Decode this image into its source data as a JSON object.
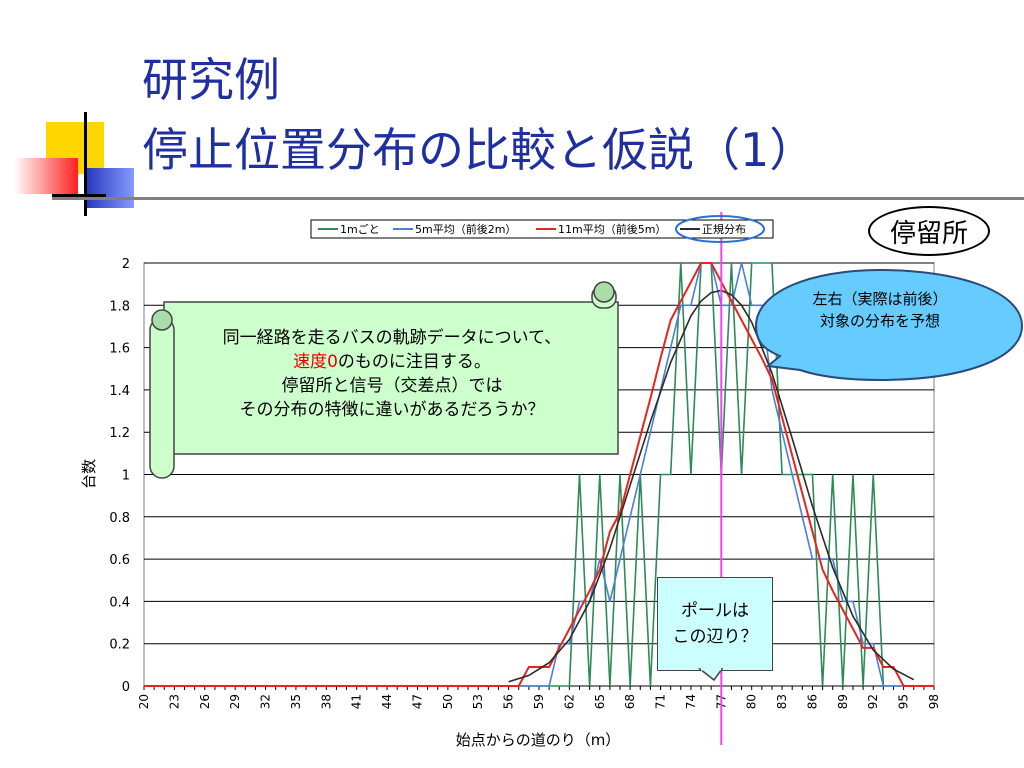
{
  "slide": {
    "title_line1": "研究例",
    "title_line2": "停止位置分布の比較と仮説（1）",
    "badge": "停留所",
    "scroll_note": {
      "line1": "同一経路を走るバスの軌跡データについて、",
      "line2_red": "速度0",
      "line2_rest": "のものに注目する。",
      "line3": "停留所と信号（交差点）では",
      "line4": "その分布の特徴に違いがあるだろうか？"
    },
    "bubble": {
      "line1": "左右（実際は前後）",
      "line2": "対象の分布を予想"
    },
    "pole_note": {
      "line1": "ポールは",
      "line2": "この辺り？"
    },
    "colors": {
      "title": "#1f2ea0",
      "series_1m": "#2e8b57",
      "series_5m": "#4a7fd4",
      "series_11m": "#e8241c",
      "series_normal": "#2b2b2b",
      "marker": "#ee44ee",
      "bubble_fill": "#66ccff"
    }
  },
  "chart_data": {
    "type": "line",
    "xlabel": "始点からの道のり（m）",
    "ylabel": "台数",
    "ylim": [
      0,
      2
    ],
    "yticks": [
      "0",
      "0.2",
      "0.4",
      "0.6",
      "0.8",
      "1",
      "1.2",
      "1.4",
      "1.6",
      "1.8",
      "2"
    ],
    "xlim": [
      20,
      98
    ],
    "xticks": [
      "20",
      "23",
      "26",
      "29",
      "32",
      "35",
      "38",
      "41",
      "44",
      "47",
      "50",
      "53",
      "56",
      "59",
      "62",
      "65",
      "68",
      "71",
      "74",
      "77",
      "80",
      "83",
      "86",
      "89",
      "92",
      "95",
      "98"
    ],
    "grid": true,
    "legend_position": "top",
    "marker_x": 77,
    "series": [
      {
        "name": "1mごと",
        "x": [
          20,
          57,
          58,
          59,
          60,
          61,
          62,
          63,
          64,
          65,
          66,
          67,
          68,
          69,
          70,
          71,
          72,
          73,
          74,
          75,
          76,
          77,
          78,
          79,
          80,
          81,
          82,
          83,
          84,
          85,
          86,
          87,
          88,
          89,
          90,
          91,
          92,
          93,
          94,
          95,
          96,
          97,
          98
        ],
        "values": [
          0,
          0,
          0,
          0,
          0,
          0,
          0,
          1,
          0,
          1,
          0,
          1,
          0,
          1,
          0,
          1,
          1,
          2,
          1,
          2,
          2,
          1,
          2,
          1,
          2,
          2,
          2,
          1,
          1,
          1,
          1,
          0,
          1,
          0,
          1,
          0,
          1,
          0,
          0,
          0,
          0,
          0,
          0
        ]
      },
      {
        "name": "5m平均（前後2m）",
        "x": [
          20,
          57,
          58,
          59,
          60,
          61,
          62,
          63,
          64,
          65,
          66,
          67,
          68,
          69,
          70,
          71,
          72,
          73,
          74,
          75,
          76,
          77,
          78,
          79,
          80,
          81,
          82,
          83,
          84,
          85,
          86,
          87,
          88,
          89,
          90,
          91,
          92,
          93,
          94,
          95,
          96,
          97,
          98
        ],
        "values": [
          0,
          0,
          0,
          0,
          0,
          0.2,
          0.2,
          0.4,
          0.4,
          0.6,
          0.4,
          0.6,
          0.8,
          1.0,
          1.2,
          1.4,
          1.6,
          1.8,
          1.8,
          2.0,
          2.0,
          1.8,
          1.8,
          2.0,
          1.8,
          1.8,
          1.4,
          1.2,
          1.0,
          0.8,
          0.6,
          0.6,
          0.6,
          0.4,
          0.4,
          0.2,
          0.2,
          0.0,
          0,
          0,
          0,
          0,
          0
        ]
      },
      {
        "name": "11m平均（前後5m）",
        "x": [
          20,
          57,
          58,
          59,
          60,
          61,
          62,
          63,
          64,
          65,
          66,
          67,
          68,
          69,
          70,
          71,
          72,
          73,
          74,
          75,
          76,
          77,
          78,
          79,
          80,
          81,
          82,
          83,
          84,
          85,
          86,
          87,
          88,
          89,
          90,
          91,
          92,
          93,
          94,
          95,
          96,
          97,
          98
        ],
        "values": [
          0,
          0,
          0.09,
          0.09,
          0.09,
          0.18,
          0.27,
          0.36,
          0.45,
          0.55,
          0.73,
          0.82,
          1.0,
          1.18,
          1.36,
          1.55,
          1.73,
          1.82,
          1.91,
          2.0,
          2.0,
          1.91,
          1.82,
          1.73,
          1.64,
          1.55,
          1.45,
          1.27,
          1.09,
          0.91,
          0.73,
          0.55,
          0.45,
          0.36,
          0.27,
          0.18,
          0.18,
          0.09,
          0.09,
          0,
          0,
          0,
          0
        ]
      },
      {
        "name": "正規分布",
        "x": [
          56,
          58,
          60,
          62,
          64,
          66,
          68,
          70,
          72,
          74,
          75,
          76,
          77,
          78,
          79,
          80,
          82,
          84,
          86,
          88,
          90,
          92,
          94,
          96
        ],
        "values": [
          0.02,
          0.05,
          0.11,
          0.22,
          0.4,
          0.65,
          0.95,
          1.25,
          1.53,
          1.75,
          1.82,
          1.86,
          1.87,
          1.85,
          1.8,
          1.72,
          1.48,
          1.17,
          0.85,
          0.56,
          0.33,
          0.17,
          0.08,
          0.03
        ]
      }
    ]
  }
}
